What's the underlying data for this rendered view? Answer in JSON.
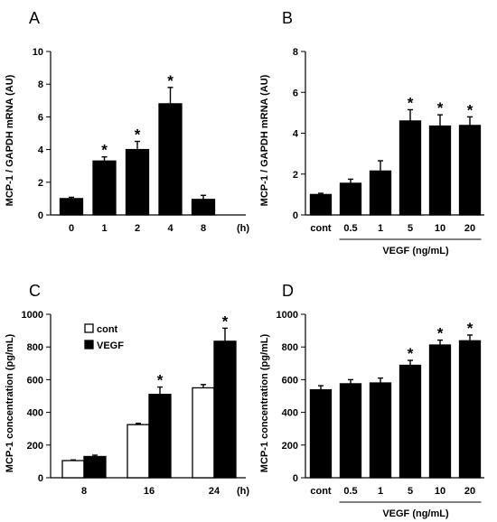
{
  "chart_data": [
    {
      "panel": "A",
      "type": "bar",
      "categories": [
        "0",
        "1",
        "2",
        "4",
        "8"
      ],
      "x_unit": "(h)",
      "series": [
        {
          "values": [
            1.0,
            3.3,
            4.0,
            6.8,
            0.95
          ],
          "errors": [
            0.08,
            0.25,
            0.5,
            1.0,
            0.25
          ],
          "color": "#000000"
        }
      ],
      "significant": [
        false,
        true,
        true,
        true,
        false
      ],
      "ylabel": "MCP-1 / GAPDH mRNA (AU)",
      "ylim": [
        0,
        10
      ],
      "yticks": [
        0,
        2,
        4,
        6,
        8,
        10
      ],
      "xlabel": ""
    },
    {
      "panel": "B",
      "type": "bar",
      "categories": [
        "cont",
        "0.5",
        "1",
        "5",
        "10",
        "20"
      ],
      "group_label": "VEGF (ng/mL)",
      "series": [
        {
          "values": [
            1.0,
            1.55,
            2.15,
            4.6,
            4.35,
            4.38
          ],
          "errors": [
            0.06,
            0.2,
            0.5,
            0.55,
            0.55,
            0.42
          ],
          "color": "#000000"
        }
      ],
      "significant": [
        false,
        false,
        false,
        true,
        true,
        true
      ],
      "ylabel": "MCP-1 / GAPDH mRNA (AU)",
      "ylim": [
        0,
        8
      ],
      "yticks": [
        0,
        2,
        4,
        6,
        8
      ],
      "xlabel": ""
    },
    {
      "panel": "C",
      "type": "bar",
      "categories": [
        "8",
        "16",
        "24"
      ],
      "x_unit": "(h)",
      "series": [
        {
          "name": "cont",
          "values": [
            105,
            325,
            550
          ],
          "errors": [
            4,
            8,
            20
          ],
          "color": "#ffffff"
        },
        {
          "name": "VEGF",
          "values": [
            130,
            510,
            835
          ],
          "errors": [
            8,
            45,
            80
          ],
          "color": "#000000"
        }
      ],
      "significant": [
        [
          false,
          false
        ],
        [
          false,
          true
        ],
        [
          false,
          true
        ]
      ],
      "legend": [
        "cont",
        "VEGF"
      ],
      "legend_position": "top-left",
      "ylabel": "MCP-1 concentration (pg/mL)",
      "ylim": [
        0,
        1000
      ],
      "yticks": [
        0,
        200,
        400,
        600,
        800,
        1000
      ],
      "xlabel": ""
    },
    {
      "panel": "D",
      "type": "bar",
      "categories": [
        "cont",
        "0.5",
        "1",
        "5",
        "10",
        "20"
      ],
      "group_label": "VEGF (ng/mL)",
      "series": [
        {
          "values": [
            538,
            575,
            580,
            688,
            812,
            838
          ],
          "errors": [
            25,
            25,
            30,
            30,
            30,
            35
          ],
          "color": "#000000"
        }
      ],
      "significant": [
        false,
        false,
        false,
        true,
        true,
        true
      ],
      "ylabel": "MCP-1 concentration (pg/mL)",
      "ylim": [
        0,
        1000
      ],
      "yticks": [
        0,
        200,
        400,
        600,
        800,
        1000
      ],
      "xlabel": ""
    }
  ],
  "star_symbol": "*"
}
